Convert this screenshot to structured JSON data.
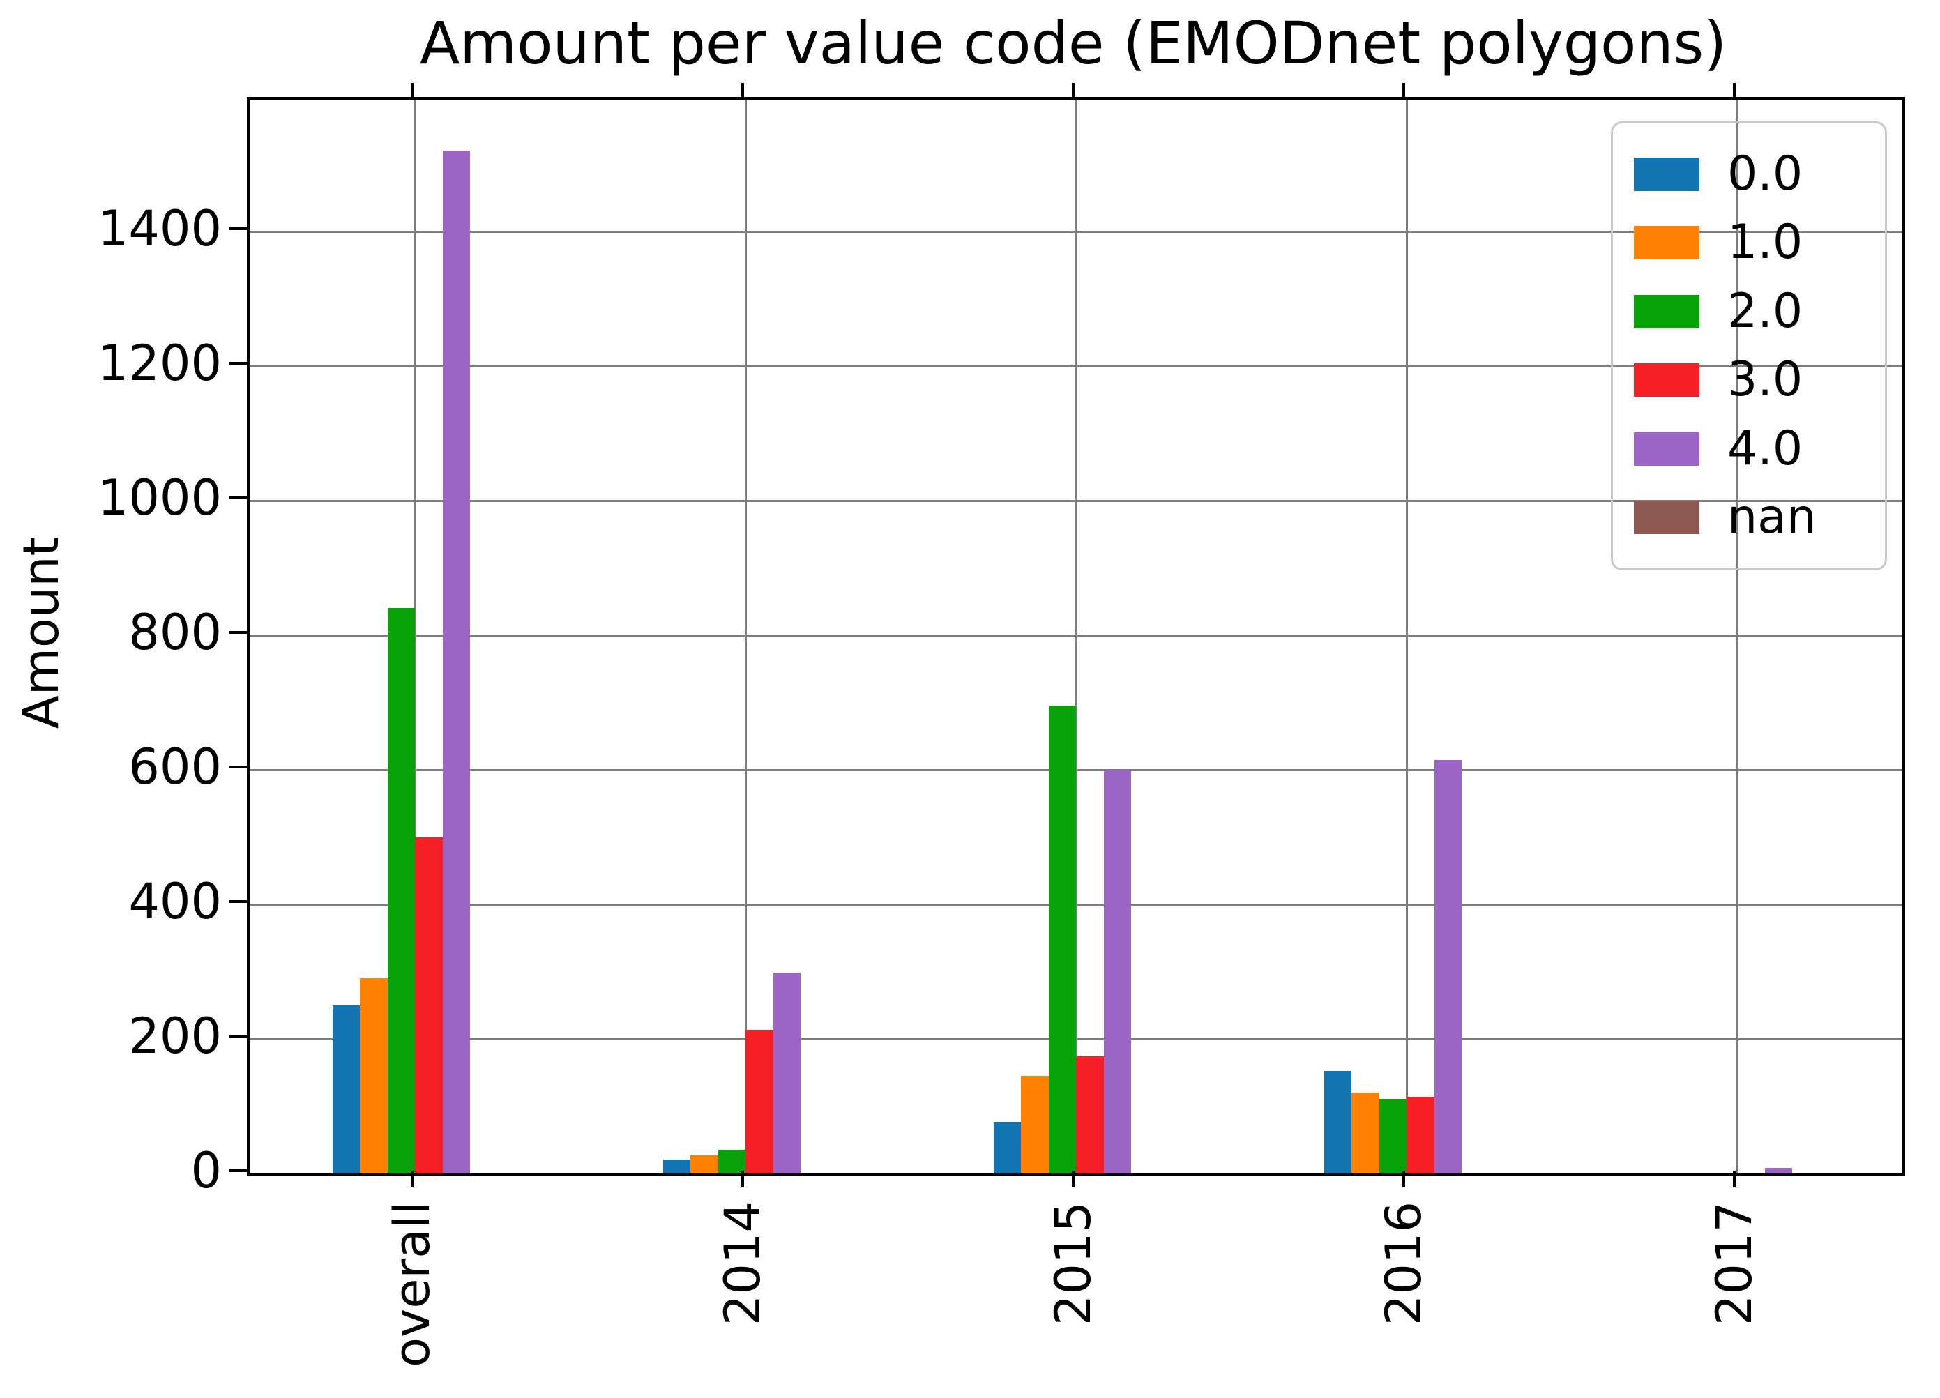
{
  "title": "Amount per value code (EMODnet polygons)",
  "ylabel": "Amount",
  "chart_data": {
    "type": "bar",
    "title": "Amount per value code (EMODnet polygons)",
    "xlabel": "",
    "ylabel": "Amount",
    "categories": [
      "overall",
      "2014",
      "2015",
      "2016",
      "2017"
    ],
    "series": [
      {
        "name": "0.0",
        "color": "#1374b4",
        "values": [
          250,
          21,
          77,
          152,
          0
        ]
      },
      {
        "name": "1.0",
        "color": "#ff8205",
        "values": [
          290,
          27,
          145,
          120,
          0
        ]
      },
      {
        "name": "2.0",
        "color": "#0aa20a",
        "values": [
          840,
          35,
          695,
          111,
          0
        ]
      },
      {
        "name": "3.0",
        "color": "#f42025",
        "values": [
          500,
          213,
          174,
          114,
          0
        ]
      },
      {
        "name": "4.0",
        "color": "#9c64c4",
        "values": [
          1520,
          298,
          600,
          615,
          8
        ]
      },
      {
        "name": "nan",
        "color": "#8d584f",
        "values": [
          0,
          0,
          0,
          0,
          0
        ]
      }
    ],
    "yticks": [
      0,
      200,
      400,
      600,
      800,
      1000,
      1200,
      1400
    ],
    "ylim": [
      0,
      1596
    ],
    "grid": true,
    "grid_color": "#7d7d7d",
    "legend_position": "upper right",
    "x_tick_rotation": 90,
    "background": "#ffffff"
  }
}
